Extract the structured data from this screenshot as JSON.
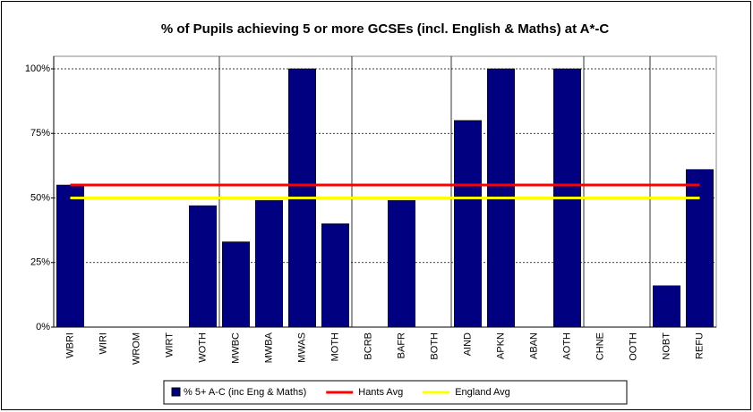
{
  "chart_data": {
    "type": "bar",
    "title": "% of Pupils achieving 5 or more GCSEs (incl. English & Maths) at A*-C",
    "categories": [
      "WBRI",
      "WIRI",
      "WROM",
      "WIRT",
      "WOTH",
      "MWBC",
      "MWBA",
      "MWAS",
      "MOTH",
      "BCRB",
      "BAFR",
      "BOTH",
      "AIND",
      "APKN",
      "ABAN",
      "AOTH",
      "CHNE",
      "OOTH",
      "NOBT",
      "REFU"
    ],
    "series": [
      {
        "name": "% 5+ A-C (inc Eng & Maths)",
        "type": "bar",
        "color": "#000080",
        "values": [
          55,
          0,
          0,
          0,
          47,
          33,
          49,
          100,
          40,
          0,
          49,
          0,
          80,
          100,
          0,
          100,
          0,
          0,
          16,
          61
        ]
      },
      {
        "name": "Hants Avg",
        "type": "line",
        "color": "#ff0000",
        "values": [
          55,
          55,
          55,
          55,
          55,
          55,
          55,
          55,
          55,
          55,
          55,
          55,
          55,
          55,
          55,
          55,
          55,
          55,
          55,
          55
        ]
      },
      {
        "name": "England Avg",
        "type": "line",
        "color": "#ffff00",
        "values": [
          50,
          50,
          50,
          50,
          50,
          50,
          50,
          50,
          50,
          50,
          50,
          50,
          50,
          50,
          50,
          50,
          50,
          50,
          50,
          50
        ]
      }
    ],
    "ylim": [
      0,
      100
    ],
    "yticks": [
      {
        "value": 0,
        "label": "0%"
      },
      {
        "value": 25,
        "label": "25%"
      },
      {
        "value": 50,
        "label": "50%"
      },
      {
        "value": 75,
        "label": "75%"
      },
      {
        "value": 100,
        "label": "100%"
      }
    ],
    "grid": true,
    "legend": "bottom"
  }
}
